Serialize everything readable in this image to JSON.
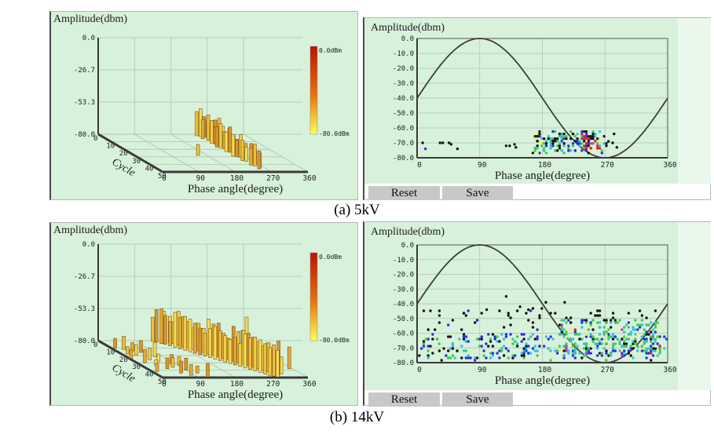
{
  "captions": {
    "a": "(a) 5kV",
    "b": "(b) 14kV"
  },
  "colors": {
    "panel_bg": "#d8f1da",
    "panel_bg_light": "#e9f8ea",
    "grid": "#aec4ae",
    "axis": "#3a3a3a",
    "sine": "#3c3c3c",
    "button_bg": "#c8c8c8",
    "bar_fills": [
      "#edbf3e",
      "#f4dd55",
      "#d9952c",
      "#f1cf48",
      "#e2a936"
    ],
    "bar_stroke": "#7a5514",
    "colorbar_top": "#b71500",
    "colorbar_mid": "#e8720e",
    "colorbar_bottom": "#ffff55",
    "dots": {
      "k": "#151515",
      "b": "#2333e0",
      "c": "#35c0ea",
      "g": "#3ecb4c",
      "y": "#eff07e",
      "r": "#e32222",
      "m": "#c23ac2"
    }
  },
  "chart_data": [
    {
      "id": "prpd3d-5kv",
      "type": "bar",
      "variant": "3d-pulse",
      "title": "Amplitude(dbm)",
      "xlabel": "Phase angle(degree)",
      "depth_label": "Cycle",
      "y_ticks": [
        "0.0",
        "-26.7",
        "-53.3",
        "-80.0"
      ],
      "ylim": [
        -80,
        0
      ],
      "x_ticks": [
        0,
        90,
        180,
        270,
        360
      ],
      "xlim": [
        0,
        360
      ],
      "depth_ticks": [
        0,
        10,
        20,
        30,
        40,
        50
      ],
      "depth_lim": [
        0,
        50
      ],
      "colorbar": {
        "top_label": "0.0dBm",
        "bottom_label": "-80.0dBm"
      },
      "bars": [
        [
          238,
          2,
          -60
        ],
        [
          244,
          3,
          -57
        ],
        [
          250,
          4,
          -63
        ],
        [
          256,
          5,
          -66
        ],
        [
          240,
          6,
          -64
        ],
        [
          247,
          8,
          -59
        ],
        [
          252,
          9,
          -65
        ],
        [
          258,
          10,
          -62
        ],
        [
          243,
          12,
          -61
        ],
        [
          249,
          13,
          -66
        ],
        [
          255,
          14,
          -58
        ],
        [
          261,
          15,
          -64
        ],
        [
          240,
          17,
          -63
        ],
        [
          246,
          18,
          -60
        ],
        [
          252,
          19,
          -66
        ],
        [
          258,
          21,
          -62
        ],
        [
          244,
          23,
          -64
        ],
        [
          250,
          24,
          -59
        ],
        [
          256,
          25,
          -65
        ],
        [
          262,
          26,
          -68
        ],
        [
          158,
          28,
          -71
        ],
        [
          242,
          29,
          -62
        ],
        [
          248,
          30,
          -66
        ],
        [
          254,
          31,
          -61
        ],
        [
          260,
          33,
          -67
        ],
        [
          246,
          35,
          -63
        ],
        [
          252,
          36,
          -68
        ],
        [
          258,
          38,
          -64
        ],
        [
          264,
          39,
          -69
        ],
        [
          248,
          41,
          -66
        ],
        [
          254,
          42,
          -62
        ],
        [
          260,
          44,
          -68
        ],
        [
          252,
          46,
          -65
        ]
      ]
    },
    {
      "id": "prpd2d-5kv",
      "type": "scatter",
      "variant": "phase-resolved",
      "title": "Amplitude(dbm)",
      "xlabel": "Phase angle(degree)",
      "y_ticks": [
        "0.0",
        "-10.0",
        "-20.0",
        "-30.0",
        "-40.0",
        "-50.0",
        "-60.0",
        "-70.0",
        "-80.0"
      ],
      "ylim": [
        -80,
        0
      ],
      "x_ticks": [
        0,
        90,
        180,
        270,
        360
      ],
      "xlim": [
        0,
        360
      ],
      "sine": {
        "mean_dbm": -40,
        "amplitude_dbm": 40,
        "peak_deg": 90
      },
      "buttons": {
        "reset_label": "Reset",
        "save_label": "Save"
      },
      "points": [
        [
          8,
          -70,
          "k"
        ],
        [
          12,
          -74,
          "b"
        ],
        [
          33,
          -70,
          "k"
        ],
        [
          37,
          -70,
          "k"
        ],
        [
          46,
          -70,
          "k"
        ],
        [
          49,
          -71,
          "k"
        ],
        [
          58,
          -74,
          "k"
        ],
        [
          128,
          -72,
          "k"
        ],
        [
          133,
          -72,
          "k"
        ],
        [
          140,
          -71,
          "k"
        ],
        [
          142,
          -73,
          "k"
        ],
        [
          275,
          -69,
          "k"
        ],
        [
          281,
          -70,
          "k"
        ],
        [
          287,
          -73,
          "k"
        ],
        [
          283,
          -64,
          "k"
        ]
      ],
      "clusters": [
        {
          "seed": 11,
          "n": 150,
          "phase": [
            168,
            268
          ],
          "amp": [
            -77,
            -62
          ],
          "palette": [
            [
              "b",
              26
            ],
            [
              "c",
              24
            ],
            [
              "g",
              22
            ],
            [
              "k",
              18
            ],
            [
              "y",
              10
            ]
          ]
        },
        {
          "seed": 23,
          "n": 26,
          "phase": [
            237,
            261
          ],
          "amp": [
            -74,
            -64
          ],
          "palette": [
            [
              "r",
              70
            ],
            [
              "m",
              8
            ],
            [
              "b",
              10
            ],
            [
              "k",
              12
            ]
          ]
        },
        {
          "seed": 37,
          "n": 22,
          "phase": [
            163,
            272
          ],
          "amp": [
            -78,
            -61
          ],
          "palette": [
            [
              "k",
              100
            ]
          ]
        }
      ]
    },
    {
      "id": "prpd3d-14kv",
      "type": "bar",
      "variant": "3d-pulse",
      "title": "Amplitude(dbm)",
      "xlabel": "Phase angle(degree)",
      "depth_label": "Cycle",
      "y_ticks": [
        "0.0",
        "-26.7",
        "-53.3",
        "-80.0"
      ],
      "ylim": [
        -80,
        0
      ],
      "x_ticks": [
        0,
        90,
        180,
        270,
        360
      ],
      "xlim": [
        0,
        360
      ],
      "depth_ticks": [
        0,
        10,
        20,
        30,
        40,
        50
      ],
      "depth_lim": [
        0,
        50
      ],
      "colorbar": {
        "top_label": "0.0dBm",
        "bottom_label": "-80.0dBm"
      },
      "bars": [
        [
          10,
          10,
          -72
        ],
        [
          25,
          12,
          -69
        ],
        [
          40,
          14,
          -73
        ],
        [
          55,
          16,
          -70
        ],
        [
          15,
          18,
          -74
        ],
        [
          30,
          20,
          -71
        ],
        [
          70,
          22,
          -68
        ],
        [
          5,
          24,
          -73
        ],
        [
          45,
          26,
          -70
        ],
        [
          60,
          28,
          -74
        ],
        [
          20,
          30,
          -69
        ],
        [
          80,
          32,
          -72
        ],
        [
          35,
          34,
          -75
        ],
        [
          50,
          38,
          -71
        ],
        [
          12,
          42,
          -73
        ],
        [
          65,
          44,
          -70
        ],
        [
          132,
          1,
          -60
        ],
        [
          160,
          1,
          -55
        ],
        [
          138,
          2,
          -53
        ],
        [
          168,
          3,
          -58
        ],
        [
          144,
          4,
          -51
        ],
        [
          174,
          4,
          -62
        ],
        [
          150,
          5,
          -56
        ],
        [
          180,
          6,
          -52
        ],
        [
          156,
          7,
          -60
        ],
        [
          186,
          8,
          -55
        ],
        [
          162,
          9,
          -51
        ],
        [
          192,
          10,
          -58
        ],
        [
          168,
          11,
          -54
        ],
        [
          198,
          12,
          -62
        ],
        [
          174,
          13,
          -52
        ],
        [
          204,
          14,
          -57
        ],
        [
          180,
          15,
          -53
        ],
        [
          210,
          16,
          -60
        ],
        [
          186,
          17,
          -55
        ],
        [
          216,
          18,
          -51
        ],
        [
          192,
          19,
          -58
        ],
        [
          222,
          20,
          -54
        ],
        [
          198,
          21,
          -61
        ],
        [
          228,
          22,
          -52
        ],
        [
          204,
          23,
          -56
        ],
        [
          234,
          24,
          -59
        ],
        [
          210,
          25,
          -53
        ],
        [
          240,
          26,
          -62
        ],
        [
          216,
          27,
          -55
        ],
        [
          246,
          28,
          -51
        ],
        [
          222,
          29,
          -58
        ],
        [
          252,
          30,
          -54
        ],
        [
          228,
          31,
          -60
        ],
        [
          258,
          32,
          -52
        ],
        [
          234,
          33,
          -57
        ],
        [
          264,
          34,
          -53
        ],
        [
          240,
          35,
          -61
        ],
        [
          270,
          36,
          -55
        ],
        [
          246,
          37,
          -52
        ],
        [
          276,
          38,
          -58
        ],
        [
          252,
          39,
          -54
        ],
        [
          282,
          40,
          -60
        ],
        [
          258,
          41,
          -52
        ],
        [
          288,
          42,
          -56
        ],
        [
          264,
          43,
          -53
        ],
        [
          294,
          44,
          -59
        ],
        [
          270,
          45,
          -55
        ],
        [
          300,
          46,
          -52
        ],
        [
          276,
          47,
          -57
        ],
        [
          282,
          48,
          -54
        ],
        [
          288,
          49,
          -58
        ],
        [
          70,
          36,
          -72
        ],
        [
          90,
          40,
          -70
        ],
        [
          105,
          44,
          -74
        ],
        [
          80,
          47,
          -71
        ],
        [
          115,
          49,
          -69
        ],
        [
          95,
          33,
          -73
        ],
        [
          320,
          12,
          -64
        ],
        [
          340,
          25,
          -67
        ],
        [
          355,
          4,
          -58
        ],
        [
          310,
          45,
          -66
        ],
        [
          352,
          38,
          -62
        ]
      ]
    },
    {
      "id": "prpd2d-14kv",
      "type": "scatter",
      "variant": "phase-resolved",
      "title": "Amplitude(dbm)",
      "xlabel": "Phase angle(degree)",
      "y_ticks": [
        "0.0",
        "-10.0",
        "-20.0",
        "-30.0",
        "-40.0",
        "-50.0",
        "-60.0",
        "-70.0",
        "-80.0"
      ],
      "ylim": [
        -80,
        0
      ],
      "x_ticks": [
        0,
        90,
        180,
        270,
        360
      ],
      "xlim": [
        0,
        360
      ],
      "sine": {
        "mean_dbm": -40,
        "amplitude_dbm": 40,
        "peak_deg": 90
      },
      "buttons": {
        "reset_label": "Reset",
        "save_label": "Save"
      },
      "points": [
        [
          128,
          -35,
          "k"
        ],
        [
          148,
          -42,
          "k"
        ],
        [
          185,
          -39,
          "k"
        ],
        [
          212,
          -39,
          "k"
        ],
        [
          100,
          -44,
          "k"
        ],
        [
          160,
          -44,
          "k"
        ]
      ],
      "clusters": [
        {
          "seed": 51,
          "n": 250,
          "phase": [
            2,
            358
          ],
          "amp": [
            -78,
            -61
          ],
          "palette": [
            [
              "k",
              28
            ],
            [
              "b",
              32
            ],
            [
              "c",
              26
            ],
            [
              "g",
              14
            ]
          ]
        },
        {
          "seed": 67,
          "n": 230,
          "phase": [
            206,
            352
          ],
          "amp": [
            -75,
            -51
          ],
          "palette": [
            [
              "g",
              36
            ],
            [
              "c",
              26
            ],
            [
              "b",
              12
            ],
            [
              "k",
              12
            ],
            [
              "y",
              9
            ],
            [
              "m",
              3
            ],
            [
              "r",
              2
            ]
          ]
        },
        {
          "seed": 83,
          "n": 40,
          "phase": [
            5,
            235
          ],
          "amp": [
            -58,
            -43
          ],
          "palette": [
            [
              "k",
              88
            ],
            [
              "b",
              8
            ],
            [
              "g",
              4
            ]
          ]
        },
        {
          "seed": 97,
          "n": 18,
          "phase": [
            240,
            356
          ],
          "amp": [
            -52,
            -44
          ],
          "palette": [
            [
              "k",
              100
            ]
          ]
        }
      ]
    }
  ]
}
